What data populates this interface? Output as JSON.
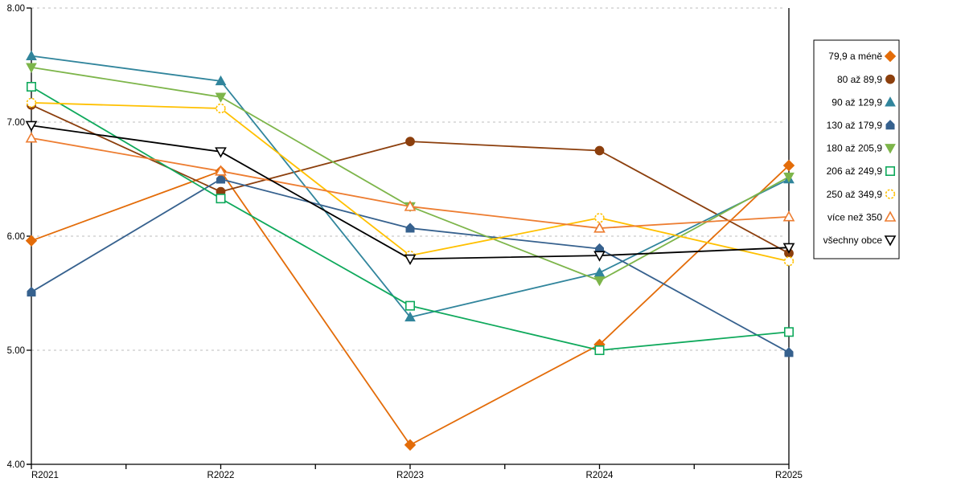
{
  "chart_data": {
    "type": "line",
    "title": "",
    "xlabel": "",
    "ylabel": "",
    "x": [
      "R2021",
      "R2022",
      "R2023",
      "R2024",
      "R2025"
    ],
    "ylim": [
      4,
      8
    ],
    "y_tick_labels": [
      "8.00",
      "7.00",
      "6.00",
      "5.00",
      "4.00"
    ],
    "grid": "horizontal-dashed",
    "grid_color": "#bdbdbd",
    "axis_color": "#000000",
    "background": "#ffffff",
    "legend_position": "right-outside",
    "series": [
      {
        "name": "79,9 a méně",
        "color": "#E36C09",
        "marker": "diamond",
        "open": false,
        "dashed_marker": false,
        "values": [
          5.96,
          6.57,
          4.17,
          5.05,
          6.62
        ]
      },
      {
        "name": "80 až 89,9",
        "color": "#8C3F0D",
        "marker": "circle",
        "open": false,
        "dashed_marker": false,
        "values": [
          7.15,
          6.39,
          6.83,
          6.75,
          5.85
        ]
      },
      {
        "name": "90 až 129,9",
        "color": "#31859C",
        "marker": "triangle-up",
        "open": false,
        "dashed_marker": false,
        "values": [
          7.58,
          7.36,
          5.29,
          5.68,
          6.5
        ]
      },
      {
        "name": "130 až 179,9",
        "color": "#36618E",
        "marker": "pentagon",
        "open": false,
        "dashed_marker": false,
        "values": [
          5.51,
          6.5,
          6.07,
          5.89,
          4.98
        ]
      },
      {
        "name": "180 až 205,9",
        "color": "#7DB54A",
        "marker": "triangle-down",
        "open": false,
        "dashed_marker": false,
        "values": [
          7.48,
          7.22,
          6.26,
          5.61,
          6.52
        ]
      },
      {
        "name": "206 až 249,9",
        "color": "#0FA95C",
        "marker": "square",
        "open": true,
        "dashed_marker": false,
        "values": [
          7.31,
          6.33,
          5.39,
          5.0,
          5.16
        ]
      },
      {
        "name": "250 až 349,9",
        "color": "#FFC000",
        "marker": "circle",
        "open": true,
        "dashed_marker": true,
        "values": [
          7.17,
          7.12,
          5.83,
          6.16,
          5.78
        ]
      },
      {
        "name": "více než 350",
        "color": "#ED7D31",
        "marker": "triangle-up",
        "open": true,
        "dashed_marker": false,
        "values": [
          6.86,
          6.57,
          6.26,
          6.07,
          6.17
        ]
      },
      {
        "name": "všechny obce",
        "color": "#000000",
        "marker": "triangle-down",
        "open": true,
        "dashed_marker": false,
        "values": [
          6.97,
          6.74,
          5.8,
          5.83,
          5.9
        ]
      }
    ]
  }
}
